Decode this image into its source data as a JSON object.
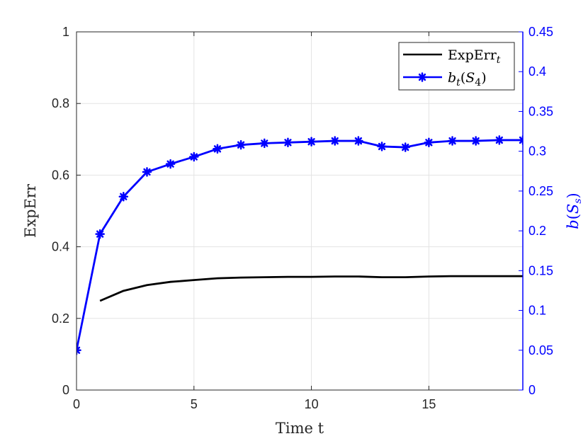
{
  "chart_data": {
    "type": "line",
    "xlabel": "Time t",
    "ylabel": "ExpErr",
    "y2label": "b(S_s)",
    "xlim": [
      0,
      19
    ],
    "ylim": [
      0,
      1
    ],
    "y2lim": [
      0,
      0.45
    ],
    "xticks": [
      0,
      5,
      10,
      15
    ],
    "yticks": [
      0,
      0.2,
      0.4,
      0.6,
      0.8,
      1
    ],
    "y2ticks": [
      0,
      0.05,
      0.1,
      0.15,
      0.2,
      0.25,
      0.3,
      0.35,
      0.4,
      0.45
    ],
    "xtick_labels": [
      "0",
      "5",
      "10",
      "15"
    ],
    "ytick_labels": [
      "0",
      "0.2",
      "0.4",
      "0.6",
      "0.8",
      "1"
    ],
    "y2tick_labels": [
      "0",
      "0.05",
      "0.1",
      "0.15",
      "0.2",
      "0.25",
      "0.3",
      "0.35",
      "0.4",
      "0.45"
    ],
    "grid": true,
    "legend_position": "top-right",
    "series": [
      {
        "name": "ExpErr_t",
        "axis": "left",
        "color": "#000000",
        "marker": "none",
        "x": [
          1,
          2,
          3,
          4,
          5,
          6,
          7,
          8,
          9,
          10,
          11,
          12,
          13,
          14,
          15,
          16,
          17,
          18,
          19
        ],
        "y": [
          0.249,
          0.277,
          0.293,
          0.302,
          0.307,
          0.312,
          0.314,
          0.315,
          0.316,
          0.316,
          0.317,
          0.317,
          0.315,
          0.315,
          0.317,
          0.318,
          0.318,
          0.318,
          0.318
        ]
      },
      {
        "name": "b_t(S_4)",
        "axis": "right",
        "color": "#0000ff",
        "marker": "asterisk",
        "x": [
          0,
          1,
          2,
          3,
          4,
          5,
          6,
          7,
          8,
          9,
          10,
          11,
          12,
          13,
          14,
          15,
          16,
          17,
          18,
          19
        ],
        "y": [
          0.05,
          0.196,
          0.243,
          0.274,
          0.284,
          0.293,
          0.303,
          0.308,
          0.31,
          0.311,
          0.312,
          0.313,
          0.313,
          0.306,
          0.305,
          0.311,
          0.313,
          0.313,
          0.314,
          0.314
        ]
      }
    ]
  }
}
